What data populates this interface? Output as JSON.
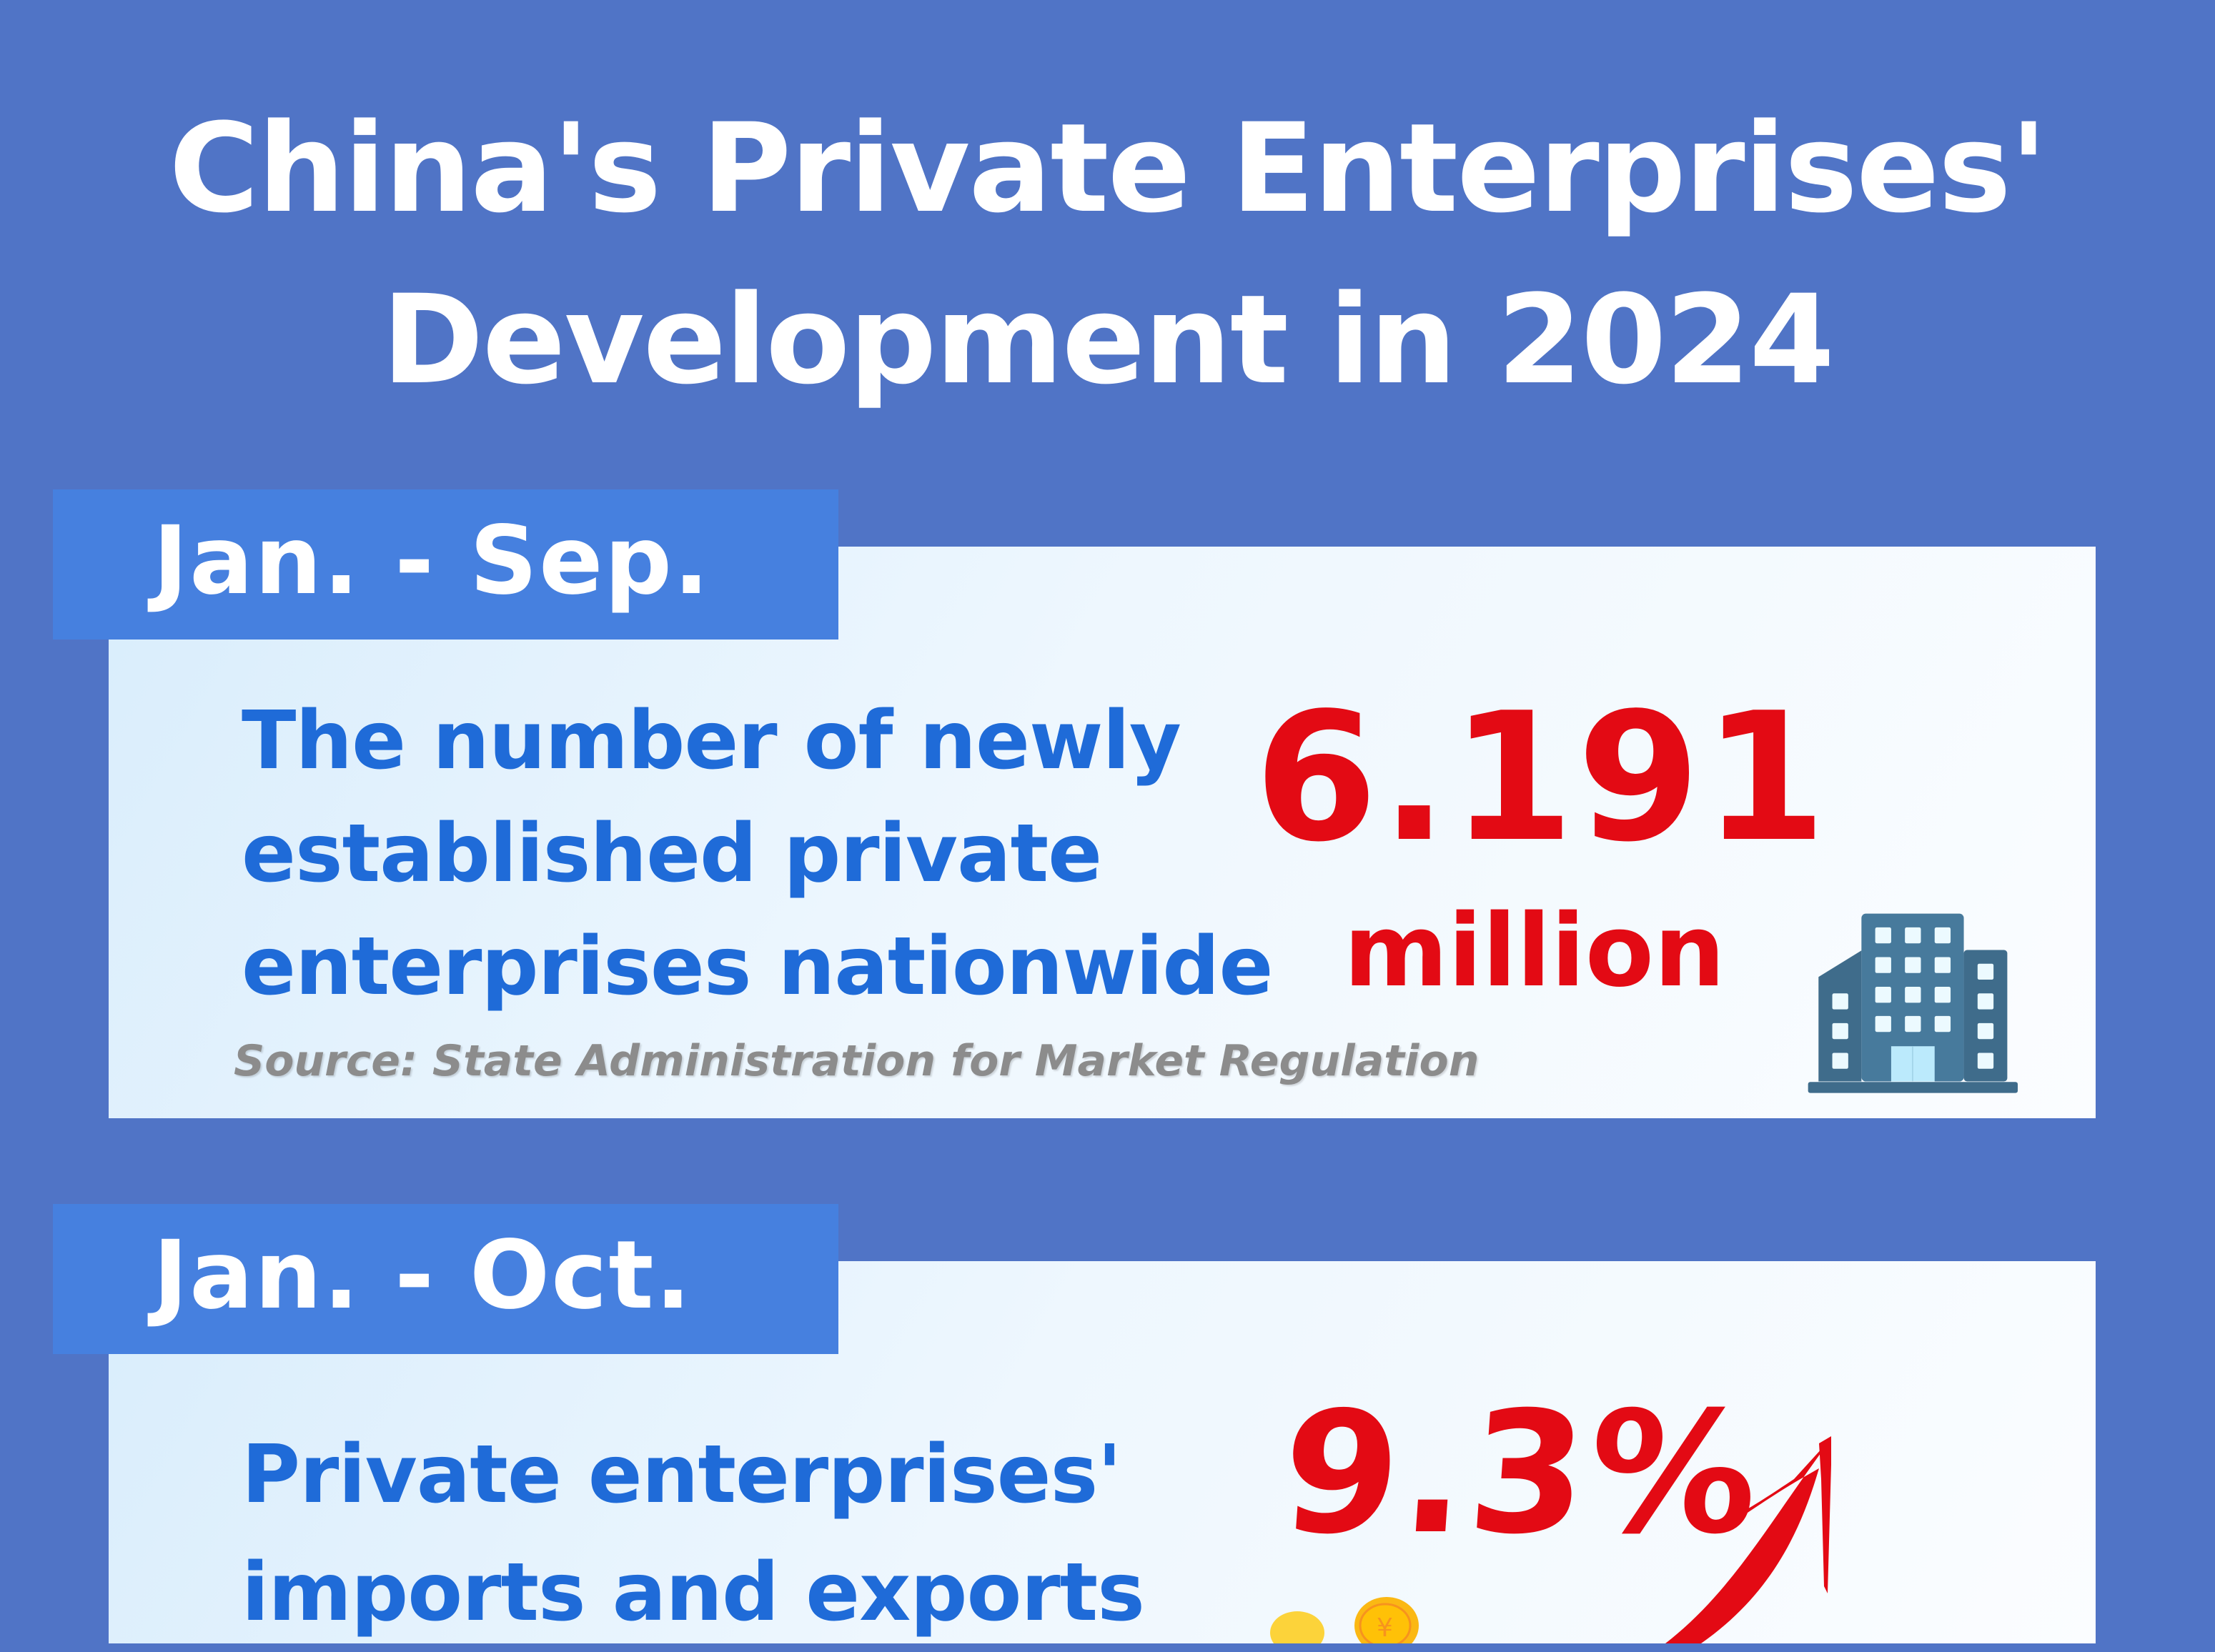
{
  "title": {
    "line1": "China's Private Enterprises'",
    "line2": "Development in 2024"
  },
  "sections": [
    {
      "period": "Jan. - Sep.",
      "description_lines": [
        "The number of newly",
        "established private",
        "enterprises nationwide"
      ],
      "value": "6.191",
      "unit": "million",
      "source": "Source: State Administration for Market Regulation",
      "icon": "office-building-icon"
    },
    {
      "period": "Jan. - Oct.",
      "description_lines": [
        "Private enterprises'",
        "imports and exports"
      ],
      "value": "9.3%",
      "icon": "upward-arrow-icon"
    }
  ],
  "colors": {
    "background": "#5074c6",
    "tab": "#4680df",
    "text_blue": "#1f6bd8",
    "highlight_red": "#e30a14"
  }
}
